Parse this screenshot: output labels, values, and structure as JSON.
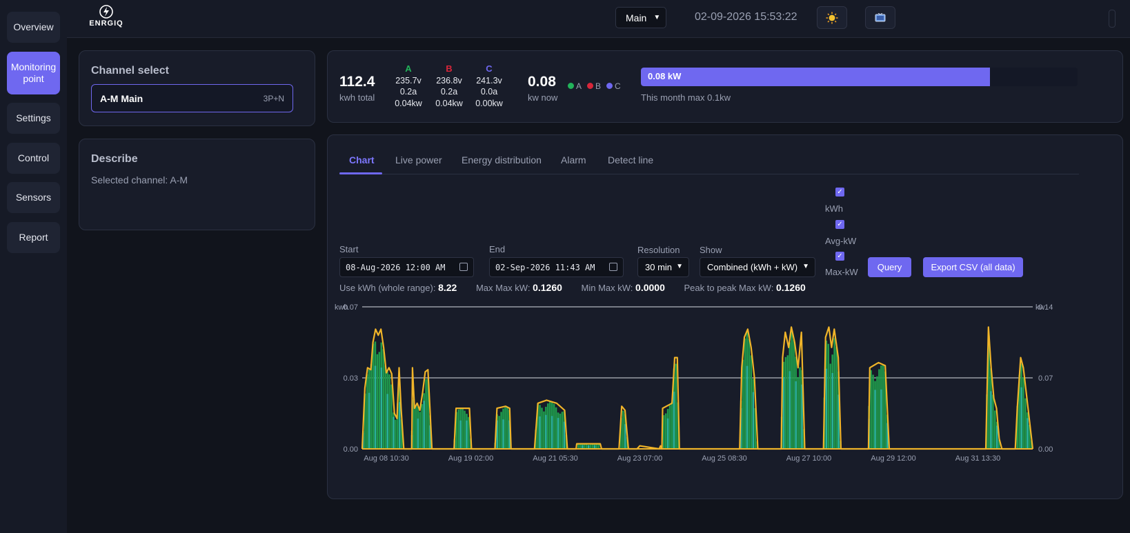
{
  "sidebar": {
    "items": [
      {
        "label": "Overview"
      },
      {
        "label": "Monitoring point"
      },
      {
        "label": "Settings"
      },
      {
        "label": "Control"
      },
      {
        "label": "Sensors"
      },
      {
        "label": "Report"
      }
    ],
    "active_index": 1
  },
  "header": {
    "logo_text": "ENRGIQ",
    "device": "Main",
    "datetime": "02-09-2026 15:53:22",
    "icons": [
      "bell-icon",
      "sun-icon",
      "tv-icon"
    ]
  },
  "channel_panel": {
    "title": "Channel select",
    "channel_name": "A-M Main",
    "channel_type": "3P+N"
  },
  "describe_panel": {
    "title": "Describe",
    "text": "Selected channel: A-M"
  },
  "summary": {
    "kwh_total": "112.4",
    "kwh_total_label": "kwh total",
    "kw_now": "0.08",
    "kw_now_label": "kw now",
    "phases": [
      {
        "name": "A",
        "color": "#22b35a",
        "voltage": "235.7v",
        "current": "0.2a",
        "power": "0.04kw"
      },
      {
        "name": "B",
        "color": "#d8263a",
        "voltage": "236.8v",
        "current": "0.2a",
        "power": "0.04kw"
      },
      {
        "name": "C",
        "color": "#6f68f0",
        "voltage": "241.3v",
        "current": "0.0a",
        "power": "0.00kw"
      }
    ],
    "legend": [
      "A",
      "B",
      "C"
    ],
    "bar_label": "0.08 kW",
    "bar_fraction": 0.8,
    "bar_note": "This month max 0.1kw"
  },
  "tabs": [
    "Chart",
    "Live power",
    "Energy distribution",
    "Alarm",
    "Detect line"
  ],
  "filters": {
    "start_label": "Start",
    "start_value": "08-Aug-2026 12:00 AM",
    "end_label": "End",
    "end_value": "02-Sep-2026 11:43 AM",
    "resolution_label": "Resolution",
    "resolution_value": "30 min",
    "show_label": "Show",
    "show_value": "Combined (kWh + kW)",
    "checkboxes": [
      "kWh",
      "Avg-kW",
      "Max-kW"
    ],
    "query_label": "Query",
    "export_label": "Export CSV (all data)"
  },
  "stats": {
    "use_kwh_label": "Use kWh (whole range):",
    "use_kwh_value": "8.22",
    "max_max_label": "Max Max kW:",
    "max_max_value": "0.1260",
    "min_max_label": "Min Max kW:",
    "min_max_value": "0.0000",
    "p2p_label": "Peak to peak Max kW:",
    "p2p_value": "0.1260"
  },
  "chart_data": {
    "type": "bar",
    "left_unit": "kwh",
    "right_unit": "kw",
    "left_ticks": [
      "0.00",
      "0.03",
      "0.07"
    ],
    "right_ticks": [
      "0.00",
      "0.07",
      "0.14"
    ],
    "left_ylim": [
      0,
      0.07
    ],
    "right_ylim": [
      0,
      0.14
    ],
    "x_ticks": [
      "Aug 08 10:30",
      "Aug 19 02:00",
      "Aug 21 05:30",
      "Aug 23 07:00",
      "Aug 25 08:30",
      "Aug 27 10:00",
      "Aug 29 12:00",
      "Aug 31 13:30"
    ],
    "series": [
      {
        "name": "kWh",
        "color": "#1f9a4c"
      },
      {
        "name": "Avg-kW",
        "color": "#2bb8a8"
      },
      {
        "name": "Max-kW",
        "color": "#f0b429"
      }
    ],
    "max_kw_points": [
      [
        0.0,
        0.0
      ],
      [
        0.004,
        0.06
      ],
      [
        0.008,
        0.08
      ],
      [
        0.013,
        0.078
      ],
      [
        0.016,
        0.105
      ],
      [
        0.02,
        0.118
      ],
      [
        0.024,
        0.112
      ],
      [
        0.028,
        0.118
      ],
      [
        0.032,
        0.1
      ],
      [
        0.036,
        0.075
      ],
      [
        0.04,
        0.08
      ],
      [
        0.044,
        0.074
      ],
      [
        0.048,
        0.035
      ],
      [
        0.052,
        0.03
      ],
      [
        0.055,
        0.08
      ],
      [
        0.058,
        0.04
      ],
      [
        0.062,
        0.0
      ],
      [
        0.074,
        0.0
      ],
      [
        0.075,
        0.08
      ],
      [
        0.078,
        0.04
      ],
      [
        0.082,
        0.045
      ],
      [
        0.086,
        0.038
      ],
      [
        0.09,
        0.055
      ],
      [
        0.094,
        0.076
      ],
      [
        0.098,
        0.078
      ],
      [
        0.101,
        0.04
      ],
      [
        0.104,
        0.0
      ],
      [
        0.137,
        0.0
      ],
      [
        0.14,
        0.04
      ],
      [
        0.16,
        0.04
      ],
      [
        0.163,
        0.0
      ],
      [
        0.198,
        0.0
      ],
      [
        0.201,
        0.04
      ],
      [
        0.214,
        0.042
      ],
      [
        0.22,
        0.04
      ],
      [
        0.222,
        0.0
      ],
      [
        0.257,
        0.0
      ],
      [
        0.262,
        0.045
      ],
      [
        0.275,
        0.048
      ],
      [
        0.29,
        0.045
      ],
      [
        0.302,
        0.038
      ],
      [
        0.306,
        0.0
      ],
      [
        0.319,
        0.0
      ],
      [
        0.32,
        0.005
      ],
      [
        0.355,
        0.005
      ],
      [
        0.357,
        0.0
      ],
      [
        0.383,
        0.0
      ],
      [
        0.387,
        0.042
      ],
      [
        0.392,
        0.038
      ],
      [
        0.397,
        0.0
      ],
      [
        0.41,
        0.0
      ],
      [
        0.414,
        0.003
      ],
      [
        0.445,
        0.003
      ],
      [
        0.447,
        0.0
      ],
      [
        0.443,
        0.0
      ],
      [
        0.448,
        0.04
      ],
      [
        0.462,
        0.045
      ],
      [
        0.466,
        0.09
      ],
      [
        0.47,
        0.09
      ],
      [
        0.473,
        0.0
      ],
      [
        0.563,
        0.0
      ],
      [
        0.566,
        0.08
      ],
      [
        0.57,
        0.11
      ],
      [
        0.575,
        0.118
      ],
      [
        0.58,
        0.1
      ],
      [
        0.585,
        0.07
      ],
      [
        0.59,
        0.0
      ],
      [
        0.625,
        0.0
      ],
      [
        0.627,
        0.09
      ],
      [
        0.631,
        0.115
      ],
      [
        0.636,
        0.1
      ],
      [
        0.64,
        0.12
      ],
      [
        0.645,
        0.105
      ],
      [
        0.65,
        0.08
      ],
      [
        0.655,
        0.115
      ],
      [
        0.66,
        0.0
      ],
      [
        0.688,
        0.0
      ],
      [
        0.691,
        0.11
      ],
      [
        0.696,
        0.12
      ],
      [
        0.7,
        0.1
      ],
      [
        0.704,
        0.118
      ],
      [
        0.71,
        0.09
      ],
      [
        0.714,
        0.0
      ],
      [
        0.755,
        0.0
      ],
      [
        0.757,
        0.08
      ],
      [
        0.77,
        0.085
      ],
      [
        0.78,
        0.082
      ],
      [
        0.786,
        0.0
      ],
      [
        0.93,
        0.0
      ],
      [
        0.934,
        0.12
      ],
      [
        0.938,
        0.08
      ],
      [
        0.942,
        0.05
      ],
      [
        0.946,
        0.04
      ],
      [
        0.95,
        0.01
      ],
      [
        0.954,
        0.0
      ],
      [
        0.974,
        0.0
      ],
      [
        0.977,
        0.04
      ],
      [
        0.982,
        0.09
      ],
      [
        0.986,
        0.08
      ],
      [
        1.0,
        0.0
      ]
    ]
  }
}
